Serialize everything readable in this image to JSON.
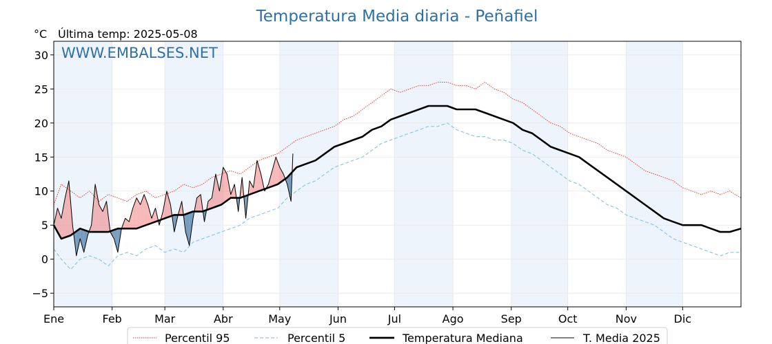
{
  "title": "Temperatura Media diaria - Peñafiel",
  "unit_label": "°C",
  "last_temp_label": "Última temp: 2025-05-08",
  "watermark": "WWW.EMBALSES.NET",
  "colors": {
    "title": "#2f6fa7",
    "p95": "#e8291f",
    "p5": "#8fc7df",
    "median": "#000000",
    "media2025": "#000000",
    "above_fill": "#f08080",
    "below_fill": "#4f7fa8",
    "band_fill": "#eef4fb",
    "grid": "#e6e6e6"
  },
  "chart_data": {
    "type": "line",
    "title": "Temperatura Media diaria - Peñafiel",
    "xlabel": "",
    "ylabel": "°C",
    "ylim": [
      -7,
      32
    ],
    "xlim": [
      1,
      366
    ],
    "x_unit": "day of year",
    "yticks": [
      -5,
      0,
      5,
      10,
      15,
      20,
      25,
      30
    ],
    "month_ticks": [
      {
        "label": "Ene",
        "day": 1
      },
      {
        "label": "Feb",
        "day": 32
      },
      {
        "label": "Mar",
        "day": 60
      },
      {
        "label": "Abr",
        "day": 91
      },
      {
        "label": "May",
        "day": 121
      },
      {
        "label": "Jun",
        "day": 152
      },
      {
        "label": "Jul",
        "day": 182
      },
      {
        "label": "Ago",
        "day": 213
      },
      {
        "label": "Sep",
        "day": 244
      },
      {
        "label": "Oct",
        "day": 274
      },
      {
        "label": "Nov",
        "day": 305
      },
      {
        "label": "Dic",
        "day": 335
      }
    ],
    "shaded_month_bands": [
      [
        1,
        32
      ],
      [
        60,
        91
      ],
      [
        121,
        152
      ],
      [
        182,
        213
      ],
      [
        244,
        274
      ],
      [
        305,
        335
      ]
    ],
    "grid": true,
    "legend_position": "bottom-center",
    "series": [
      {
        "name": "Percentil 95",
        "style": "dotted",
        "x": [
          1,
          5,
          10,
          15,
          20,
          25,
          30,
          35,
          40,
          45,
          50,
          55,
          60,
          65,
          70,
          75,
          80,
          85,
          90,
          95,
          100,
          105,
          110,
          115,
          120,
          125,
          130,
          135,
          140,
          145,
          150,
          155,
          160,
          165,
          170,
          175,
          180,
          185,
          190,
          195,
          200,
          205,
          210,
          215,
          220,
          225,
          230,
          235,
          240,
          245,
          250,
          255,
          260,
          265,
          270,
          275,
          280,
          285,
          290,
          295,
          300,
          305,
          310,
          315,
          320,
          325,
          330,
          335,
          340,
          345,
          350,
          355,
          360,
          366
        ],
        "values": [
          8.0,
          11.0,
          10.0,
          9.0,
          10.0,
          8.5,
          9.5,
          9.0,
          8.5,
          9.5,
          10.0,
          9.0,
          9.5,
          10.0,
          11.0,
          10.5,
          11.0,
          12.0,
          12.5,
          13.0,
          12.5,
          13.5,
          14.5,
          15.0,
          15.5,
          16.5,
          17.5,
          18.0,
          18.5,
          19.0,
          19.5,
          20.5,
          21.0,
          22.0,
          23.0,
          24.0,
          25.0,
          24.5,
          25.0,
          25.5,
          25.5,
          26.0,
          26.0,
          25.5,
          25.5,
          25.0,
          26.0,
          25.0,
          24.5,
          23.5,
          23.0,
          22.0,
          21.0,
          20.0,
          19.5,
          18.5,
          18.0,
          17.5,
          17.0,
          16.0,
          15.5,
          15.0,
          14.0,
          13.0,
          12.5,
          12.0,
          11.5,
          10.5,
          10.0,
          9.5,
          10.0,
          9.5,
          10.0,
          9.0
        ]
      },
      {
        "name": "Percentil 5",
        "style": "dashed",
        "x": [
          1,
          5,
          10,
          15,
          20,
          25,
          30,
          35,
          40,
          45,
          50,
          55,
          60,
          65,
          70,
          75,
          80,
          85,
          90,
          95,
          100,
          105,
          110,
          115,
          120,
          125,
          130,
          135,
          140,
          145,
          150,
          155,
          160,
          165,
          170,
          175,
          180,
          185,
          190,
          195,
          200,
          205,
          210,
          215,
          220,
          225,
          230,
          235,
          240,
          245,
          250,
          255,
          260,
          265,
          270,
          275,
          280,
          285,
          290,
          295,
          300,
          305,
          310,
          315,
          320,
          325,
          330,
          335,
          340,
          345,
          350,
          355,
          360,
          366
        ],
        "values": [
          1.5,
          0.0,
          -1.5,
          0.0,
          0.5,
          0.0,
          -1.0,
          0.5,
          1.0,
          0.5,
          1.5,
          2.0,
          1.0,
          1.5,
          1.0,
          2.5,
          3.0,
          3.5,
          4.0,
          4.5,
          5.0,
          6.0,
          6.5,
          7.0,
          7.5,
          9.0,
          10.0,
          11.0,
          11.5,
          12.5,
          13.5,
          14.0,
          14.5,
          15.0,
          16.0,
          17.0,
          17.5,
          18.0,
          18.5,
          19.0,
          19.5,
          19.5,
          20.0,
          19.0,
          18.5,
          18.0,
          18.0,
          17.5,
          17.5,
          17.0,
          16.0,
          15.5,
          14.5,
          13.5,
          12.5,
          11.5,
          11.0,
          10.0,
          9.0,
          8.0,
          7.5,
          6.5,
          6.0,
          5.5,
          5.0,
          4.0,
          3.0,
          2.5,
          2.0,
          1.5,
          1.0,
          0.5,
          1.0,
          1.0
        ]
      },
      {
        "name": "Temperatura Mediana",
        "style": "solid-thick",
        "x": [
          1,
          5,
          10,
          15,
          20,
          25,
          30,
          35,
          40,
          45,
          50,
          55,
          60,
          65,
          70,
          75,
          80,
          85,
          90,
          95,
          100,
          105,
          110,
          115,
          120,
          125,
          130,
          135,
          140,
          145,
          150,
          155,
          160,
          165,
          170,
          175,
          180,
          185,
          190,
          195,
          200,
          205,
          210,
          215,
          220,
          225,
          230,
          235,
          240,
          245,
          250,
          255,
          260,
          265,
          270,
          275,
          280,
          285,
          290,
          295,
          300,
          305,
          310,
          315,
          320,
          325,
          330,
          335,
          340,
          345,
          350,
          355,
          360,
          366
        ],
        "values": [
          5.0,
          3.0,
          3.5,
          4.5,
          4.0,
          4.0,
          4.0,
          4.5,
          4.5,
          4.5,
          5.0,
          5.5,
          6.0,
          6.5,
          6.5,
          7.0,
          7.0,
          7.5,
          8.0,
          9.0,
          9.0,
          9.5,
          10.0,
          10.5,
          11.0,
          12.0,
          13.5,
          14.0,
          14.5,
          15.5,
          16.5,
          17.0,
          17.5,
          18.0,
          19.0,
          19.5,
          20.5,
          21.0,
          21.5,
          22.0,
          22.5,
          22.5,
          22.5,
          22.0,
          22.0,
          22.0,
          21.5,
          21.0,
          20.5,
          20.0,
          19.0,
          18.5,
          17.5,
          16.5,
          16.0,
          15.5,
          15.0,
          14.0,
          13.0,
          12.0,
          11.0,
          10.0,
          9.0,
          8.0,
          7.0,
          6.0,
          5.5,
          5.0,
          5.0,
          5.0,
          4.5,
          4.0,
          4.0,
          4.5
        ]
      },
      {
        "name": "T. Media 2025",
        "style": "solid-thin",
        "x": [
          1,
          3,
          5,
          7,
          9,
          11,
          13,
          15,
          17,
          19,
          21,
          23,
          25,
          27,
          29,
          31,
          33,
          35,
          37,
          39,
          41,
          43,
          45,
          47,
          49,
          51,
          53,
          55,
          57,
          59,
          61,
          63,
          65,
          67,
          69,
          71,
          73,
          75,
          77,
          79,
          81,
          83,
          85,
          87,
          89,
          91,
          93,
          95,
          97,
          99,
          101,
          103,
          105,
          107,
          109,
          111,
          113,
          115,
          117,
          119,
          121,
          123,
          125,
          127,
          128
        ],
        "values": [
          5.0,
          7.5,
          6.0,
          9.0,
          11.5,
          5.0,
          0.5,
          3.0,
          1.0,
          3.5,
          5.0,
          11.0,
          8.0,
          7.0,
          8.5,
          4.0,
          3.0,
          1.0,
          4.5,
          6.0,
          5.5,
          7.5,
          9.0,
          8.0,
          9.5,
          8.0,
          6.0,
          7.5,
          5.0,
          7.0,
          10.0,
          8.0,
          4.0,
          6.5,
          8.5,
          4.0,
          2.0,
          6.0,
          9.0,
          9.5,
          5.5,
          8.5,
          9.0,
          12.5,
          10.0,
          13.5,
          12.5,
          9.5,
          11.0,
          7.0,
          12.0,
          6.0,
          11.5,
          10.5,
          14.5,
          12.5,
          10.0,
          11.0,
          13.0,
          15.0,
          13.5,
          12.5,
          11.0,
          8.5,
          15.5
        ]
      }
    ]
  },
  "legend": {
    "items": [
      {
        "label": "Percentil 95"
      },
      {
        "label": "Percentil 5"
      },
      {
        "label": "Temperatura Mediana"
      },
      {
        "label": "T. Media 2025"
      }
    ]
  }
}
